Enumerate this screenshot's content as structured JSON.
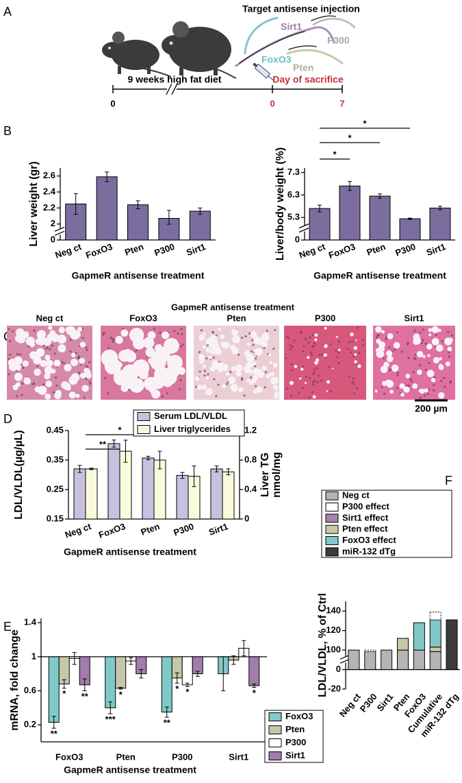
{
  "schematic": {
    "panel_label": "A",
    "title": "Target antisense injection",
    "genes": [
      "Sirt1",
      "FoxO3",
      "P300",
      "Pten"
    ],
    "diet": "9 weeks high fat diet",
    "sacrifice": "Day of sacrifice",
    "timeline": [
      0,
      0,
      7
    ]
  },
  "histology": {
    "panel_label": "C",
    "title": "GapmeR antisense treatment",
    "labels": [
      "Neg ct",
      "FoxO3",
      "Pten",
      "P300",
      "Sirt1"
    ],
    "scale_bar": "200 µm"
  },
  "chart_data": [
    {
      "type": "bar",
      "panel_label": "B",
      "ylabel": "Liver weight (gr)",
      "xlabel": "GapmeR antisense treatment",
      "categories": [
        "Neg ct",
        "FoxO3",
        "Pten",
        "P300",
        "Sirt1"
      ],
      "values": [
        2.25,
        2.59,
        2.24,
        2.07,
        2.16
      ],
      "errors": [
        0.13,
        0.06,
        0.05,
        0.1,
        0.04
      ],
      "color": "#7b6d9e",
      "ylim": [
        0,
        2.7
      ],
      "yticks": [
        0,
        2,
        2.2,
        2.4,
        2.6
      ],
      "axis_break": true
    },
    {
      "type": "bar",
      "ylabel": "Liver/body weight (%)",
      "xlabel": "GapmeR antisense treatment",
      "categories": [
        "Neg ct",
        "FoxO3",
        "Pten",
        "P300",
        "Sirt1"
      ],
      "values": [
        5.7,
        6.7,
        6.25,
        5.0,
        5.72
      ],
      "errors": [
        0.15,
        0.2,
        0.1,
        0.15,
        0.08
      ],
      "color": "#7b6d9e",
      "ylim": [
        0,
        7.5
      ],
      "yticks": [
        0,
        5.3,
        6.3,
        7.3
      ],
      "axis_break": true,
      "significance": [
        {
          "from": 0,
          "to": 1,
          "label": "*"
        },
        {
          "from": 0,
          "to": 2,
          "label": "*"
        },
        {
          "from": 0,
          "to": 3,
          "label": "*"
        }
      ]
    },
    {
      "type": "bar",
      "panel_label": "D",
      "ylabel": "LDL/VLDL(µg/µL)",
      "y2label": [
        "Liver TG",
        "nmol/mg"
      ],
      "xlabel": "GapmeR antisense treatment",
      "categories": [
        "Neg ct",
        "FoxO3",
        "Pten",
        "P300",
        "Sirt1"
      ],
      "series": [
        {
          "name": "Serum LDL/VLDL",
          "color": "#c5c1de",
          "values": [
            0.32,
            0.406,
            0.357,
            0.298,
            0.32
          ],
          "errors": [
            0.012,
            0.012,
            0.006,
            0.01,
            0.01
          ]
        },
        {
          "name": "Liver triglycerides",
          "color": "#fafadc",
          "axis": "y2",
          "values": [
            0.68,
            0.92,
            0.8,
            0.58,
            0.64
          ],
          "errors": [
            0.01,
            0.15,
            0.12,
            0.14,
            0.04
          ]
        }
      ],
      "ylim": [
        0.15,
        0.45
      ],
      "yticks": [
        0.15,
        0.25,
        0.35,
        0.45
      ],
      "y2lim": [
        0,
        1.2
      ],
      "y2ticks": [
        0,
        0.4,
        0.8,
        1.2
      ],
      "legend": "top",
      "significance": [
        {
          "from": 0,
          "to": 1,
          "label": "**"
        },
        {
          "from": 0,
          "to": 2,
          "label": "*"
        }
      ]
    },
    {
      "type": "bar",
      "panel_label": "E",
      "ylabel": "mRNA, fold change",
      "xlabel": "GapmeR antisense treatment",
      "categories": [
        "FoxO3",
        "Pten",
        "P300",
        "Sirt1"
      ],
      "series": [
        {
          "name": "FoxO3",
          "color": "#7fc9c9",
          "values": [
            0.23,
            0.4,
            0.35,
            0.8
          ],
          "errors": [
            0.07,
            0.07,
            0.06,
            0.2
          ],
          "stars": [
            "**",
            "***",
            "**",
            null
          ]
        },
        {
          "name": "Pten",
          "color": "#c6c6aa",
          "values": [
            0.68,
            0.63,
            0.75,
            0.96
          ],
          "errors": [
            0.05,
            0.01,
            0.06,
            0.05
          ],
          "stars": [
            "*",
            "*",
            "*",
            null
          ]
        },
        {
          "name": "P300",
          "color": "#ffffff",
          "values": [
            0.98,
            0.95,
            0.67,
            1.1
          ],
          "errors": [
            0.07,
            0.04,
            0.02,
            0.09
          ],
          "stars": [
            null,
            null,
            "*",
            null
          ]
        },
        {
          "name": "Sirt1",
          "color": "#a27caa",
          "values": [
            0.67,
            0.8,
            0.8,
            0.66
          ],
          "errors": [
            0.07,
            0.05,
            0.03,
            0.02
          ],
          "stars": [
            "**",
            null,
            null,
            "*"
          ]
        }
      ],
      "ylim": [
        0,
        1.45
      ],
      "yticks": [
        0.2,
        0.6,
        1,
        1.4
      ],
      "reference_line": 1,
      "legend": "right"
    },
    {
      "type": "stacked_bar",
      "panel_label": "F",
      "ylabel": "LDL/VLDL, % of Ctrl",
      "categories": [
        "Neg ct",
        "P300",
        "Sirt1",
        "Pten",
        "FoxO3",
        "Cumulative",
        "miR-132 dTg"
      ],
      "series": [
        {
          "name": "Neg ct",
          "color": "#b4b4b4",
          "values": [
            100,
            92,
            100,
            100,
            100,
            92,
            null
          ]
        },
        {
          "name": "P300 effect",
          "color": "#ffffff",
          "line_style": "dotted",
          "values": [
            null,
            8,
            null,
            null,
            null,
            8,
            null
          ]
        },
        {
          "name": "Sirt1 effect",
          "color": "#a482ac",
          "values": [
            null,
            null,
            0,
            null,
            null,
            null,
            null
          ]
        },
        {
          "name": "Pten effect",
          "color": "#c8c8a4",
          "values": [
            null,
            null,
            null,
            12,
            null,
            11,
            null
          ]
        },
        {
          "name": "FoxO3 effect",
          "color": "#80c8c8",
          "values": [
            null,
            null,
            null,
            null,
            28,
            28,
            null
          ]
        },
        {
          "name": "miR-132 dTg",
          "color": "#3c3c3c",
          "values": [
            null,
            null,
            null,
            null,
            null,
            null,
            131
          ]
        }
      ],
      "ylim": [
        -20,
        150
      ],
      "yticks": [
        -20,
        0,
        100,
        120,
        140
      ],
      "axis_break": true,
      "legend": "top"
    }
  ]
}
